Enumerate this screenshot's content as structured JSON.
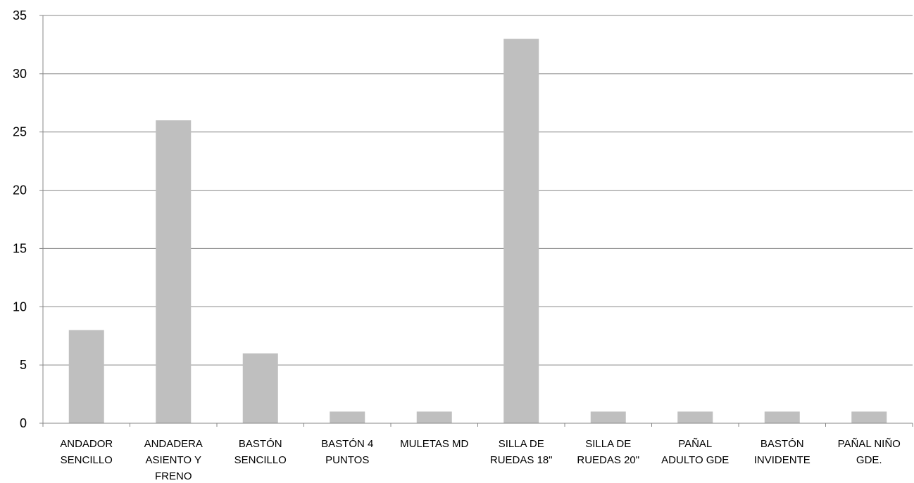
{
  "chart_data": {
    "type": "bar",
    "title": "",
    "xlabel": "",
    "ylabel": "",
    "ylim": [
      0,
      35
    ],
    "y_ticks": [
      0,
      5,
      10,
      15,
      20,
      25,
      30,
      35
    ],
    "grid": true,
    "legend": "none",
    "bar_color": "#bfbfbf",
    "grid_color": "#878787",
    "categories": [
      [
        "ANDADOR",
        "SENCILLO"
      ],
      [
        "ANDADERA",
        "ASIENTO Y",
        "FRENO"
      ],
      [
        "BASTÓN",
        "SENCILLO"
      ],
      [
        "BASTÓN 4",
        "PUNTOS"
      ],
      [
        "MULETAS MD"
      ],
      [
        "SILLA DE",
        "RUEDAS 18\""
      ],
      [
        "SILLA DE",
        "RUEDAS 20\""
      ],
      [
        "PAÑAL",
        "ADULTO GDE"
      ],
      [
        "BASTÓN",
        "INVIDENTE"
      ],
      [
        "PAÑAL NIÑO",
        "GDE."
      ]
    ],
    "values": [
      8,
      26,
      6,
      1,
      1,
      33,
      1,
      1,
      1,
      1
    ]
  }
}
